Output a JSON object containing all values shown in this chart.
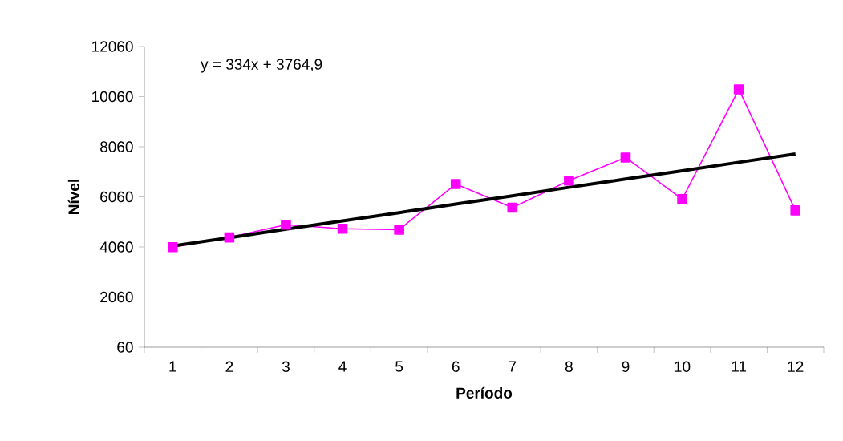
{
  "chart_data": {
    "type": "line",
    "xlabel": "Período",
    "ylabel": "Nível",
    "categories": [
      "1",
      "2",
      "3",
      "4",
      "5",
      "6",
      "7",
      "8",
      "9",
      "10",
      "11",
      "12"
    ],
    "series": [
      {
        "color": "#ff00ff",
        "marker": "square",
        "values": [
          4050,
          4440,
          4950,
          4790,
          4750,
          6570,
          5630,
          6710,
          7630,
          5970,
          10350,
          5520
        ]
      },
      {
        "color": "#000000",
        "marker": "none",
        "values": [
          4100,
          4430,
          4770,
          5100,
          5430,
          5770,
          6100,
          6440,
          6770,
          7100,
          7440,
          7770
        ]
      }
    ],
    "ylim": [
      60,
      12060
    ],
    "yticks": [
      60,
      2060,
      4060,
      6060,
      8060,
      10060,
      12060
    ],
    "annotations": [
      "y = 334x + 3764,9"
    ],
    "grid": false
  }
}
